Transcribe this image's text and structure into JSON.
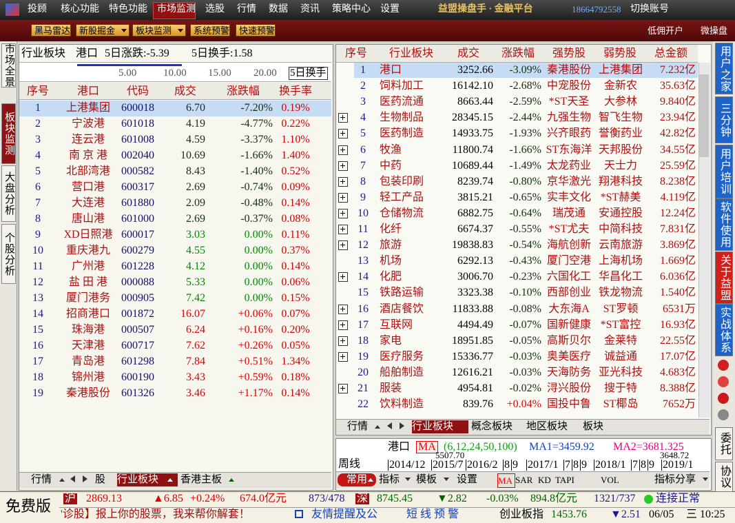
{
  "menu": {
    "items": [
      "投顾",
      "核心功能",
      "特色功能",
      "市场监测",
      "选股",
      "行情",
      "数据",
      "资讯",
      "策略中心",
      "设置"
    ],
    "title": "益盟操盘手 · 金融平台",
    "phone": "18664792558",
    "switch": "切换账号"
  },
  "toolbar": {
    "buttons": [
      "黑马雷达",
      "新股掘金",
      "板块监测",
      "系统预警",
      "快速预警"
    ],
    "right": [
      "低佣开户",
      "微操盘"
    ]
  },
  "left_tabs": [
    "市场全景",
    "板块监测",
    "大盘分析",
    "个股分析"
  ],
  "left_panel": {
    "header": {
      "sector": "行业板块",
      "stock": "港口",
      "change": "5日涨跌:-5.39",
      "turnover": "5日换手:1.58"
    },
    "axis": {
      "ticks": [
        "5.00",
        "10.00",
        "15.00",
        "20.00"
      ],
      "label": "5日换手"
    },
    "table": {
      "columns": [
        "序号",
        "港口",
        "代码",
        "成交",
        "涨跌幅",
        "换手率"
      ],
      "rows": [
        [
          "1",
          "上港集团",
          "600018",
          "6.70",
          "-7.20%",
          "0.19%"
        ],
        [
          "2",
          "宁波港",
          "601018",
          "4.19",
          "-4.77%",
          "0.22%"
        ],
        [
          "3",
          "连云港",
          "601008",
          "4.59",
          "-3.37%",
          "1.10%"
        ],
        [
          "4",
          "南 京 港",
          "002040",
          "10.69",
          "-1.66%",
          "1.40%"
        ],
        [
          "5",
          "北部湾港",
          "000582",
          "8.43",
          "-1.40%",
          "0.52%"
        ],
        [
          "6",
          "营口港",
          "600317",
          "2.69",
          "-0.74%",
          "0.09%"
        ],
        [
          "7",
          "大连港",
          "601880",
          "2.09",
          "-0.48%",
          "0.14%"
        ],
        [
          "8",
          "唐山港",
          "601000",
          "2.69",
          "-0.37%",
          "0.08%"
        ],
        [
          "9",
          "XD日照港",
          "600017",
          "3.03",
          "0.00%",
          "0.11%"
        ],
        [
          "10",
          "重庆港九",
          "600279",
          "4.55",
          "0.00%",
          "0.37%"
        ],
        [
          "11",
          "广州港",
          "601228",
          "4.12",
          "0.00%",
          "0.14%"
        ],
        [
          "12",
          "盐 田 港",
          "000088",
          "5.33",
          "0.00%",
          "0.06%"
        ],
        [
          "13",
          "厦门港务",
          "000905",
          "7.42",
          "0.00%",
          "0.15%"
        ],
        [
          "14",
          "招商港口",
          "001872",
          "16.07",
          "+0.06%",
          "0.07%"
        ],
        [
          "15",
          "珠海港",
          "000507",
          "6.24",
          "+0.16%",
          "0.20%"
        ],
        [
          "16",
          "天津港",
          "600717",
          "7.62",
          "+0.26%",
          "0.05%"
        ],
        [
          "17",
          "青岛港",
          "601298",
          "7.84",
          "+0.51%",
          "1.34%"
        ],
        [
          "18",
          "锦州港",
          "600190",
          "3.43",
          "+0.59%",
          "0.18%"
        ],
        [
          "19",
          "秦港股份",
          "601326",
          "3.46",
          "+1.17%",
          "0.14%"
        ]
      ]
    },
    "tabs": [
      "行情",
      "股",
      "行业板块",
      "香港主板"
    ]
  },
  "right_panel": {
    "table": {
      "columns": [
        "序号",
        "行业板块",
        "成交",
        "涨跌幅",
        "强势股",
        "弱势股",
        "总金额"
      ],
      "rows": [
        {
          "no": "1",
          "name": "港口",
          "amount": "3252.66",
          "change": "-3.09%",
          "strong": "秦港股份",
          "weak": "上港集团",
          "total": "7.232亿",
          "expand": false
        },
        {
          "no": "2",
          "name": "饲料加工",
          "amount": "16142.10",
          "change": "-2.68%",
          "strong": "中宠股份",
          "weak": "金新农",
          "total": "35.63亿",
          "expand": false
        },
        {
          "no": "3",
          "name": "医药流通",
          "amount": "8663.44",
          "change": "-2.59%",
          "strong": "*ST天圣",
          "weak": "大参林",
          "total": "9.840亿",
          "expand": false
        },
        {
          "no": "4",
          "name": "生物制品",
          "amount": "28345.15",
          "change": "-2.44%",
          "strong": "九强生物",
          "weak": "智飞生物",
          "total": "23.94亿",
          "expand": true
        },
        {
          "no": "5",
          "name": "医药制造",
          "amount": "14933.75",
          "change": "-1.93%",
          "strong": "兴齐眼药",
          "weak": "誉衡药业",
          "total": "42.82亿",
          "expand": true
        },
        {
          "no": "6",
          "name": "牧渔",
          "amount": "11800.74",
          "change": "-1.66%",
          "strong": "ST东海洋",
          "weak": "天邦股份",
          "total": "34.55亿",
          "expand": true
        },
        {
          "no": "7",
          "name": "中药",
          "amount": "10689.44",
          "change": "-1.49%",
          "strong": "太龙药业",
          "weak": "天士力",
          "total": "25.59亿",
          "expand": true
        },
        {
          "no": "8",
          "name": "包装印刷",
          "amount": "8239.74",
          "change": "-0.80%",
          "strong": "京华激光",
          "weak": "翔港科技",
          "total": "8.238亿",
          "expand": true
        },
        {
          "no": "9",
          "name": "轻工产品",
          "amount": "3815.21",
          "change": "-0.65%",
          "strong": "实丰文化",
          "weak": "*ST赫美",
          "total": "4.119亿",
          "expand": true
        },
        {
          "no": "10",
          "name": "仓储物流",
          "amount": "6882.75",
          "change": "-0.64%",
          "strong": "瑞茂通",
          "weak": "安通控股",
          "total": "12.24亿",
          "expand": true
        },
        {
          "no": "11",
          "name": "化纤",
          "amount": "6674.37",
          "change": "-0.55%",
          "strong": "*ST尤夫",
          "weak": "中简科技",
          "total": "7.831亿",
          "expand": true
        },
        {
          "no": "12",
          "name": "旅游",
          "amount": "19838.83",
          "change": "-0.54%",
          "strong": "海航创新",
          "weak": "云南旅游",
          "total": "3.869亿",
          "expand": true
        },
        {
          "no": "13",
          "name": "机场",
          "amount": "6292.13",
          "change": "-0.43%",
          "strong": "厦门空港",
          "weak": "上海机场",
          "total": "1.669亿",
          "expand": false
        },
        {
          "no": "14",
          "name": "化肥",
          "amount": "3006.70",
          "change": "-0.23%",
          "strong": "六国化工",
          "weak": "华昌化工",
          "total": "6.036亿",
          "expand": true
        },
        {
          "no": "15",
          "name": "铁路运输",
          "amount": "3323.38",
          "change": "-0.10%",
          "strong": "西部创业",
          "weak": "铁龙物流",
          "total": "1.540亿",
          "expand": false
        },
        {
          "no": "16",
          "name": "酒店餐饮",
          "amount": "11833.88",
          "change": "-0.08%",
          "strong": "大东海A",
          "weak": "ST罗顿",
          "total": "6531万",
          "expand": true
        },
        {
          "no": "17",
          "name": "互联网",
          "amount": "4494.49",
          "change": "-0.07%",
          "strong": "国新健康",
          "weak": "*ST富控",
          "total": "16.93亿",
          "expand": true
        },
        {
          "no": "18",
          "name": "家电",
          "amount": "18951.85",
          "change": "-0.05%",
          "strong": "高斯贝尔",
          "weak": "金莱特",
          "total": "22.55亿",
          "expand": true
        },
        {
          "no": "19",
          "name": "医疗服务",
          "amount": "15336.77",
          "change": "-0.03%",
          "strong": "奥美医疗",
          "weak": "诚益通",
          "total": "17.07亿",
          "expand": true
        },
        {
          "no": "20",
          "name": "船舶制造",
          "amount": "12616.21",
          "change": "-0.03%",
          "strong": "天海防务",
          "weak": "亚光科技",
          "total": "4.683亿",
          "expand": false
        },
        {
          "no": "21",
          "name": "服装",
          "amount": "4954.81",
          "change": "-0.02%",
          "strong": "浔兴股份",
          "weak": "搜于特",
          "total": "8.388亿",
          "expand": true
        },
        {
          "no": "22",
          "name": "饮料制造",
          "amount": "839.76",
          "change": "+0.04%",
          "strong": "国投中鲁",
          "weak": "ST椰岛",
          "total": "7652万",
          "expand": false
        }
      ]
    },
    "tabs": [
      "行情",
      "行业板块",
      "概念板块",
      "地区板块",
      "板块"
    ]
  },
  "mini_chart": {
    "name": "港口",
    "ma": "MA",
    "params": "(6,12,24,50,100)",
    "ma1": "MA1=3459.92",
    "ma2": "MA2=3681.325",
    "high": "5507.70",
    "low": "3648.72",
    "period": "周线",
    "dates": [
      "2014/12",
      "2015/7",
      "2016/2",
      "8",
      "9",
      "2017/1",
      "7",
      "8",
      "9",
      "2018/1",
      "7",
      "8",
      "9",
      "2019/1"
    ],
    "tools": [
      "常用",
      "指标",
      "模板",
      "设置",
      "MA",
      "SAR",
      "KD",
      "TAPI",
      "VOL",
      "指标分享"
    ]
  },
  "right_tabs": [
    "用户之家",
    "三分钟",
    "用户培训",
    "软件使用",
    "关于益盟",
    "实战体系",
    "委托",
    "协议"
  ],
  "status": {
    "edition": "免费版",
    "sh": [
      "沪",
      "2869.13",
      "▲6.85",
      "+0.24%",
      "674.0亿元",
      "873/478"
    ],
    "sz": [
      "深",
      "8745.45",
      "▼2.82",
      "-0.03%",
      "894.8亿元",
      "1321/737"
    ],
    "connection": "连接正常",
    "ticker": "'诊股】报上你的股票，我来帮你解套！",
    "notice": "友情提醒及公",
    "alert": "短 线 预 警",
    "gem": [
      "创业板指",
      "1453.76",
      "▼2.51"
    ],
    "date": "06/05",
    "weekday": "三",
    "time": "10:25"
  }
}
